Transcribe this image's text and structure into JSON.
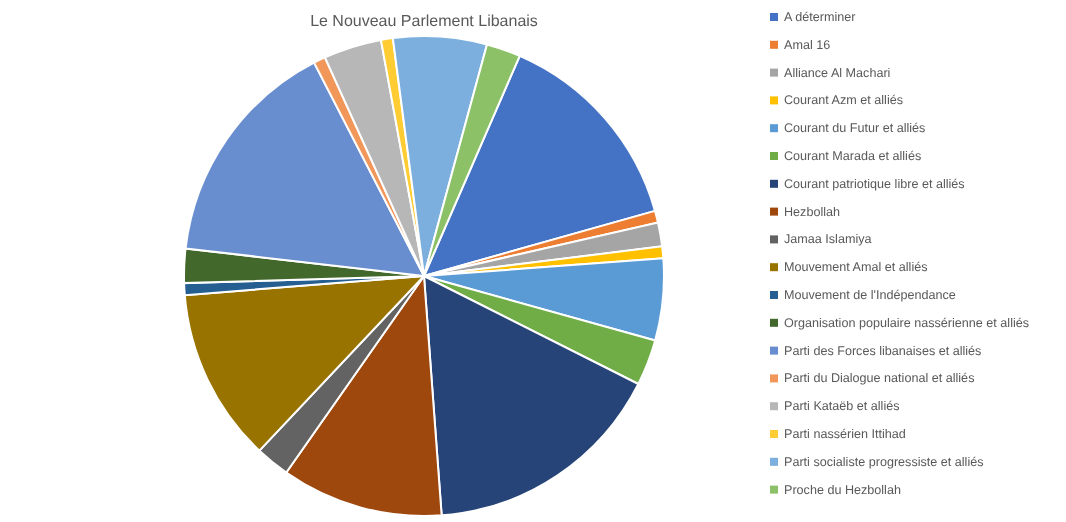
{
  "chart_data": {
    "type": "pie",
    "title": "Le Nouveau Parlement Libanais",
    "categories": [
      "A déterminer",
      "Amal 16",
      "Alliance Al Machari",
      "Courant Azm et alliés",
      "Courant du Futur et alliés",
      "Courant Marada et alliés",
      "Courant patriotique libre et alliés",
      "Hezbollah",
      "Jamaa Islamiya",
      "Mouvement Amal et alliés",
      "Mouvement de l'Indépendance",
      "Organisation populaire nassérienne et alliés",
      "Parti des Forces libanaises et alliés",
      "Parti du Dialogue national et alliés",
      "Parti Kataëb et alliés",
      "Parti nassérien Ittihad",
      "Parti socialiste progressiste et alliés",
      "Proche du Hezbollah"
    ],
    "values": [
      14.1,
      0.8,
      1.6,
      0.8,
      5.5,
      3.1,
      16.4,
      10.9,
      2.3,
      11.7,
      0.8,
      2.3,
      15.6,
      0.8,
      3.9,
      0.8,
      6.3,
      2.3
    ],
    "colors": [
      "#4472c4",
      "#ed7d31",
      "#a5a5a5",
      "#ffc000",
      "#5b9bd5",
      "#70ad47",
      "#264478",
      "#9e480e",
      "#636363",
      "#997300",
      "#255e91",
      "#43682b",
      "#698ed0",
      "#f1975a",
      "#b7b7b7",
      "#ffcd33",
      "#7cafdd",
      "#8cc168"
    ],
    "legend": "right"
  }
}
